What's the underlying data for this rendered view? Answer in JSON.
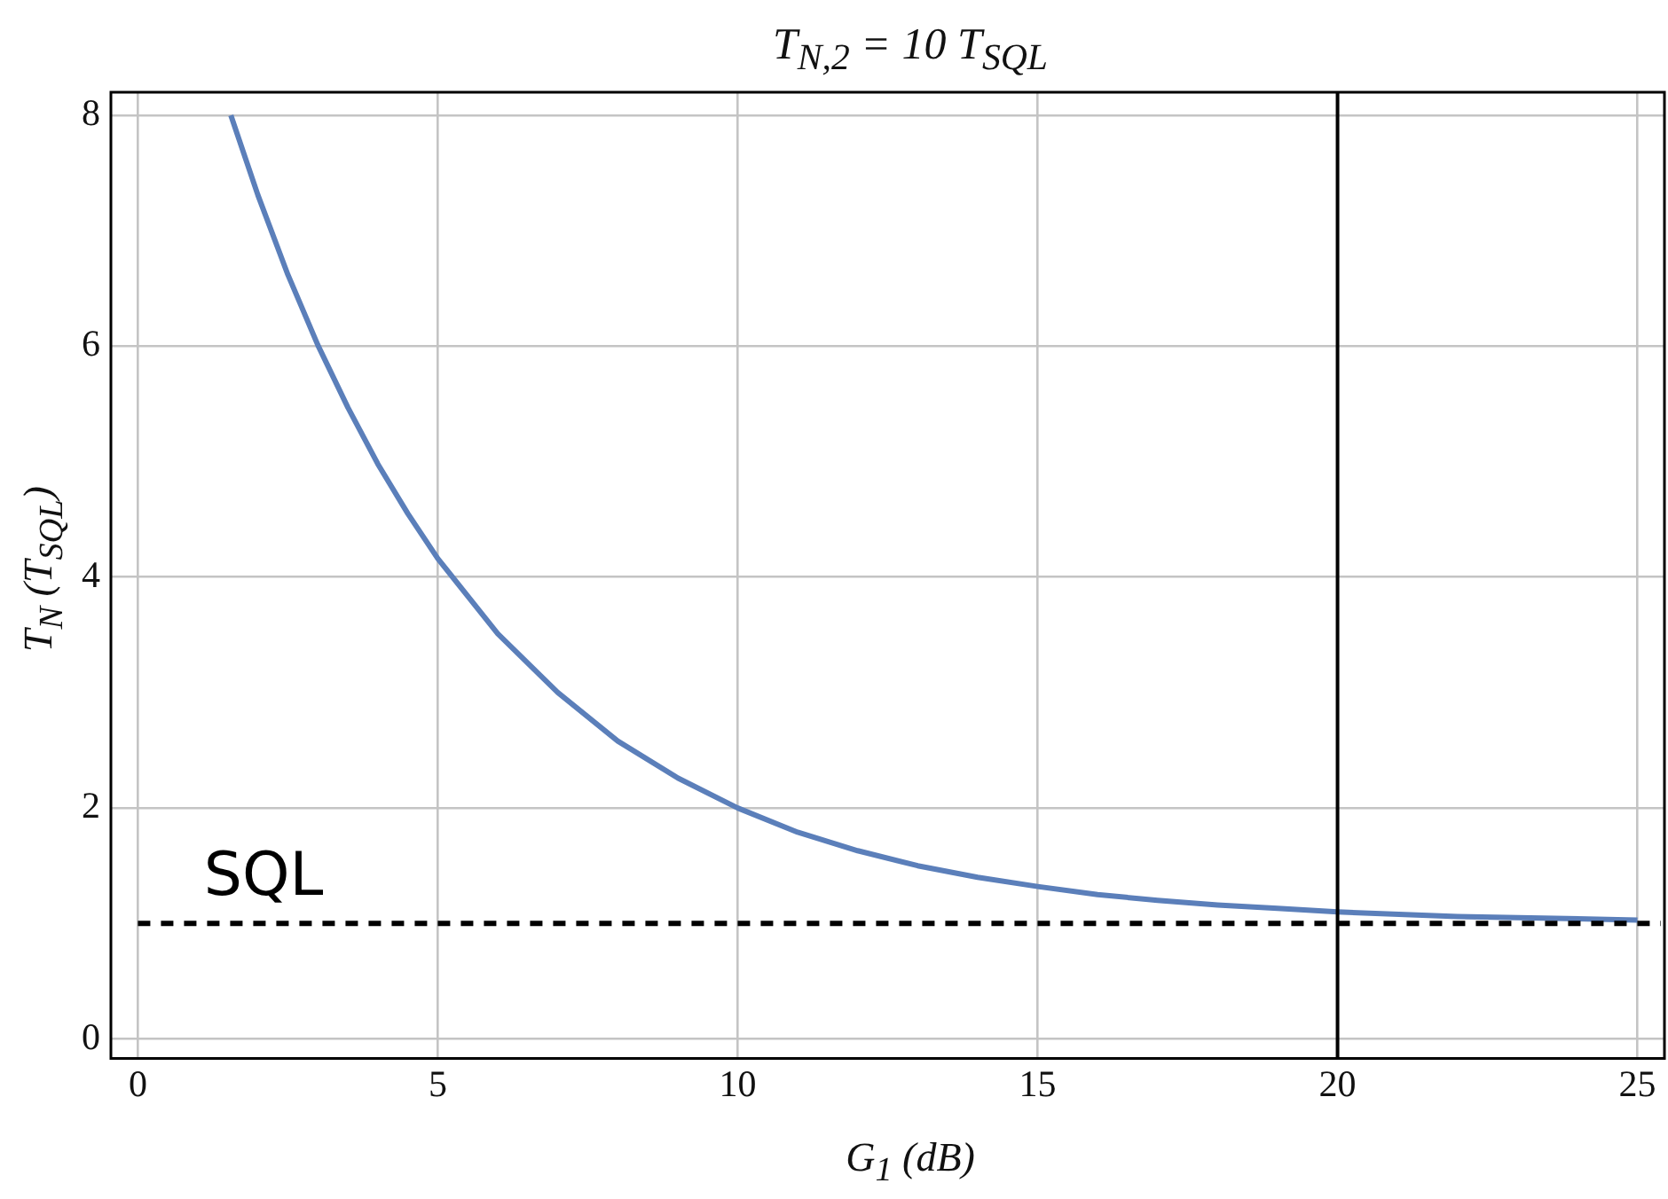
{
  "chart_data": {
    "type": "line",
    "title": "T$_{N,2}$ = 10 T$_{SQL}$",
    "xlabel": "G$_{1}$ (dB)",
    "ylabel": "T$_{N}$ (T$_{SQL}$)",
    "xlim": [
      -0.45,
      25.45
    ],
    "xticks": [
      0,
      5,
      10,
      15,
      20,
      25
    ],
    "ylim": [
      -0.17,
      8.2
    ],
    "yticks": [
      0,
      2,
      4,
      6,
      8
    ],
    "grid": true,
    "marker": "none",
    "line_style": "solid",
    "series": [
      {
        "color": "#5b7fba",
        "x": [
          1.55,
          2,
          2.5,
          3,
          3.5,
          4,
          4.5,
          5,
          6,
          7,
          8,
          9,
          10,
          11,
          12,
          13,
          14,
          15,
          16,
          17,
          18,
          19,
          20,
          22,
          25
        ],
        "values": [
          8.0,
          7.31,
          6.62,
          6.01,
          5.47,
          4.98,
          4.55,
          4.16,
          3.51,
          3.0,
          2.58,
          2.26,
          2.0,
          1.79,
          1.63,
          1.5,
          1.4,
          1.32,
          1.25,
          1.2,
          1.16,
          1.13,
          1.1,
          1.06,
          1.03
        ]
      }
    ],
    "ref_lines": [
      {
        "axis": "y",
        "value": 1,
        "label": "SQL",
        "color": "#000000",
        "line_style": "dashed"
      },
      {
        "axis": "x",
        "value": 20,
        "color": "#000000",
        "line_style": "solid"
      }
    ]
  }
}
